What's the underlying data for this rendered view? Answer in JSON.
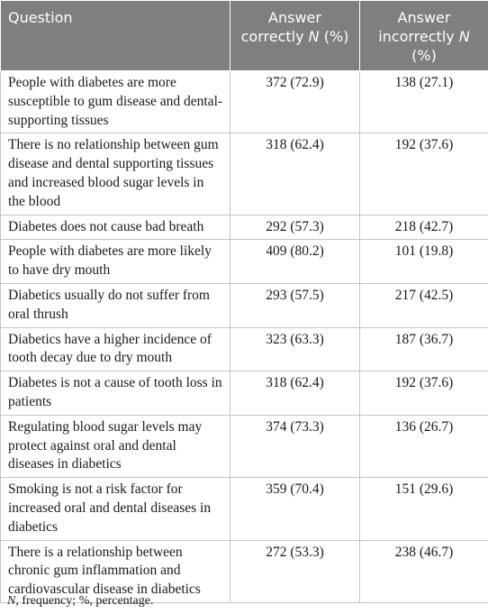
{
  "header": {
    "question": "Question",
    "correct_pre": "Answer correctly ",
    "correct_n": "N",
    "correct_post": " (%)",
    "incorrect_pre": "Answer incorrectly ",
    "incorrect_n": "N",
    "incorrect_post": " (%)"
  },
  "rows": [
    {
      "question": "People with diabetes are more susceptible to gum disease and dental-supporting tissues",
      "correct": "372 (72.9)",
      "incorrect": "138 (27.1)"
    },
    {
      "question": "There is no relationship between gum disease and dental supporting tissues and increased blood sugar levels in the blood",
      "correct": "318 (62.4)",
      "incorrect": "192 (37.6)"
    },
    {
      "question": "Diabetes does not cause bad breath",
      "correct": "292 (57.3)",
      "incorrect": "218 (42.7)"
    },
    {
      "question": "People with diabetes are more likely to have dry mouth",
      "correct": "409 (80.2)",
      "incorrect": "101 (19.8)"
    },
    {
      "question": "Diabetics usually do not suffer from oral thrush",
      "correct": "293 (57.5)",
      "incorrect": "217 (42.5)"
    },
    {
      "question": "Diabetics have a higher incidence of tooth decay due to dry mouth",
      "correct": "323 (63.3)",
      "incorrect": "187 (36.7)"
    },
    {
      "question": "Diabetes is not a cause of tooth loss in patients",
      "correct": "318 (62.4)",
      "incorrect": "192 (37.6)"
    },
    {
      "question": "Regulating blood sugar levels may protect against oral and dental diseases in diabetics",
      "correct": "374 (73.3)",
      "incorrect": "136 (26.7)"
    },
    {
      "question": "Smoking is not a risk factor for increased oral and dental diseases in diabetics",
      "correct": "359 (70.4)",
      "incorrect": "151 (29.6)"
    },
    {
      "question": "There is a relationship between chronic gum inflammation and cardiovascular disease in diabetics",
      "correct": "272 (53.3)",
      "incorrect": "238 (46.7)"
    }
  ],
  "footnote": {
    "n": "N",
    "rest": ", frequency; %, percentage."
  },
  "colors": {
    "header_bg": "#7f7f7f",
    "header_text": "#ffffff",
    "grid": "#c4c4c4"
  }
}
